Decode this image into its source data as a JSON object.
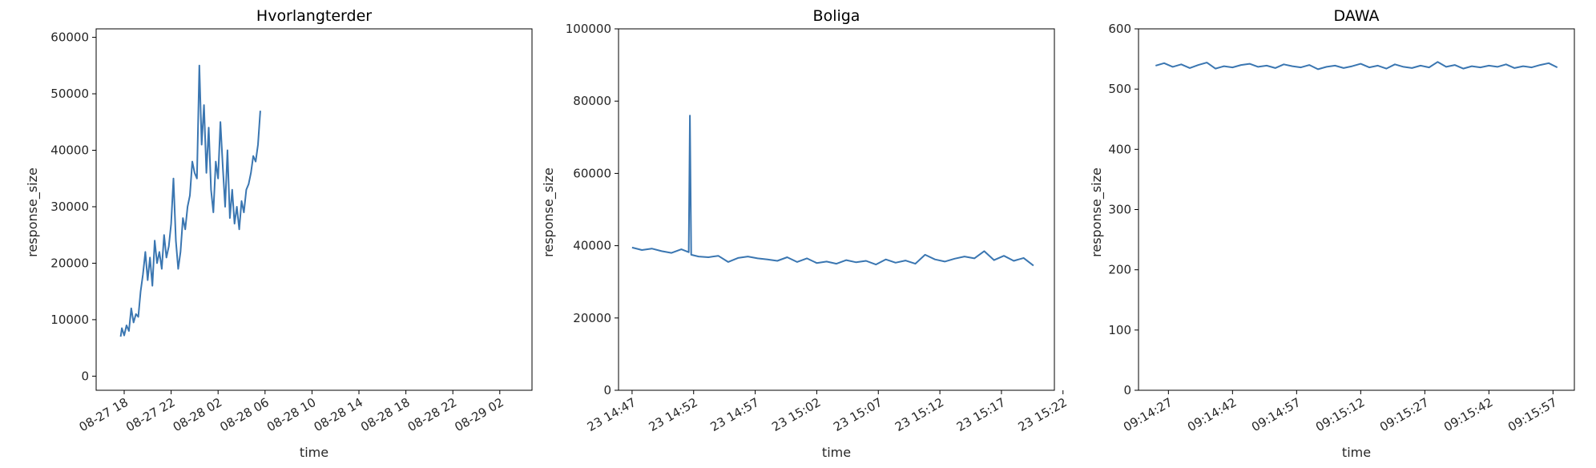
{
  "colors": {
    "line": "#3a76b1"
  },
  "chart_data": [
    {
      "type": "line",
      "title": "Hvorlangterder",
      "xlabel": "time",
      "ylabel": "response_size",
      "x_ticks": [
        "08-27 18",
        "08-27 22",
        "08-28 02",
        "08-28 06",
        "08-28 10",
        "08-28 14",
        "08-28 18",
        "08-28 22",
        "08-29 02"
      ],
      "y_ticks": [
        0,
        10000,
        20000,
        30000,
        40000,
        50000,
        60000
      ],
      "ylim": [
        -2500,
        61500
      ],
      "xlim_hours": [
        16.9,
        29.85
      ],
      "grid": false,
      "series": [
        {
          "x_hours": [
            17.7,
            17.8,
            18.0,
            18.2,
            18.4,
            18.6,
            18.8,
            19.0,
            19.2,
            19.4,
            19.6,
            19.8,
            20.0,
            20.2,
            20.4,
            20.6,
            20.8,
            21.0,
            21.2,
            21.4,
            21.6,
            21.8,
            22.0,
            22.2,
            22.4,
            22.6,
            22.8,
            23.0,
            23.2,
            23.4,
            23.6,
            23.8,
            24.0,
            24.2,
            24.4,
            24.6,
            24.8,
            25.0,
            25.2,
            25.4,
            25.6,
            25.8,
            26.0,
            26.2,
            26.4,
            26.6,
            26.8,
            27.0,
            27.2,
            27.4,
            27.6,
            27.8,
            28.0,
            28.2,
            28.4,
            28.6,
            28.8,
            29.0,
            29.2,
            29.4,
            29.6
          ],
          "values": [
            7000,
            8500,
            7200,
            9000,
            8000,
            12000,
            9500,
            11000,
            10500,
            15000,
            18000,
            22000,
            17000,
            21000,
            16000,
            24000,
            20000,
            22000,
            19000,
            25000,
            21000,
            23000,
            27000,
            35000,
            24000,
            19000,
            22000,
            28000,
            26000,
            30000,
            32000,
            38000,
            36000,
            35000,
            55000,
            41000,
            48000,
            36000,
            44000,
            33000,
            29000,
            38000,
            35000,
            45000,
            37000,
            30000,
            40000,
            28000,
            33000,
            27000,
            30000,
            26000,
            31000,
            29000,
            33000,
            34000,
            36000,
            39000,
            38000,
            41000,
            47000
          ]
        }
      ]
    },
    {
      "type": "line",
      "title": "Boliga",
      "xlabel": "time",
      "ylabel": "response_size",
      "x_ticks": [
        "23 14:47",
        "23 14:52",
        "23 14:57",
        "23 15:02",
        "23 15:07",
        "23 15:12",
        "23 15:17",
        "23 15:22"
      ],
      "y_ticks": [
        0,
        20000,
        40000,
        60000,
        80000,
        100000
      ],
      "ylim": [
        0,
        100000
      ],
      "xlim_minutes": [
        45.9,
        81.3
      ],
      "grid": false,
      "series": [
        {
          "x_minutes": [
            47.0,
            47.8,
            48.6,
            49.4,
            50.2,
            51.0,
            51.6,
            51.7,
            51.8,
            52.4,
            53.2,
            54.0,
            54.8,
            55.6,
            56.4,
            57.2,
            58.0,
            58.8,
            59.6,
            60.4,
            61.2,
            62.0,
            62.8,
            63.6,
            64.4,
            65.2,
            66.0,
            66.8,
            67.6,
            68.4,
            69.2,
            70.0,
            70.8,
            71.6,
            72.4,
            73.2,
            74.0,
            74.8,
            75.6,
            76.4,
            77.2,
            78.0,
            78.8,
            79.6
          ],
          "values": [
            39500,
            38800,
            39200,
            38500,
            38000,
            39000,
            38200,
            76000,
            37500,
            37000,
            36800,
            37200,
            35500,
            36600,
            37000,
            36500,
            36200,
            35800,
            36800,
            35500,
            36500,
            35200,
            35600,
            35000,
            36000,
            35400,
            35800,
            34800,
            36200,
            35300,
            35900,
            35000,
            37500,
            36200,
            35600,
            36400,
            37000,
            36500,
            38500,
            36000,
            37200,
            35800,
            36600,
            34500
          ]
        }
      ]
    },
    {
      "type": "line",
      "title": "DAWA",
      "xlabel": "time",
      "ylabel": "response_size",
      "x_ticks": [
        "09:14:27",
        "09:14:42",
        "09:14:57",
        "09:15:12",
        "09:15:27",
        "09:15:42",
        "09:15:57"
      ],
      "y_ticks": [
        0,
        100,
        200,
        300,
        400,
        500,
        600
      ],
      "ylim": [
        0,
        600
      ],
      "xlim_seconds": [
        860,
        962
      ],
      "grid": false,
      "series": [
        {
          "x_seconds": [
            864,
            866,
            868,
            870,
            872,
            874,
            876,
            878,
            880,
            882,
            884,
            886,
            888,
            890,
            892,
            894,
            896,
            898,
            900,
            902,
            904,
            906,
            908,
            910,
            912,
            914,
            916,
            918,
            920,
            922,
            924,
            926,
            928,
            930,
            932,
            934,
            936,
            938,
            940,
            942,
            944,
            946,
            948,
            950,
            952,
            954,
            956,
            958
          ],
          "values": [
            539,
            543,
            537,
            541,
            535,
            540,
            544,
            534,
            538,
            536,
            540,
            542,
            537,
            539,
            535,
            541,
            538,
            536,
            540,
            533,
            537,
            539,
            535,
            538,
            542,
            536,
            539,
            534,
            541,
            537,
            535,
            539,
            536,
            545,
            537,
            540,
            534,
            538,
            536,
            539,
            537,
            541,
            535,
            538,
            536,
            540,
            543,
            536
          ]
        }
      ]
    }
  ]
}
